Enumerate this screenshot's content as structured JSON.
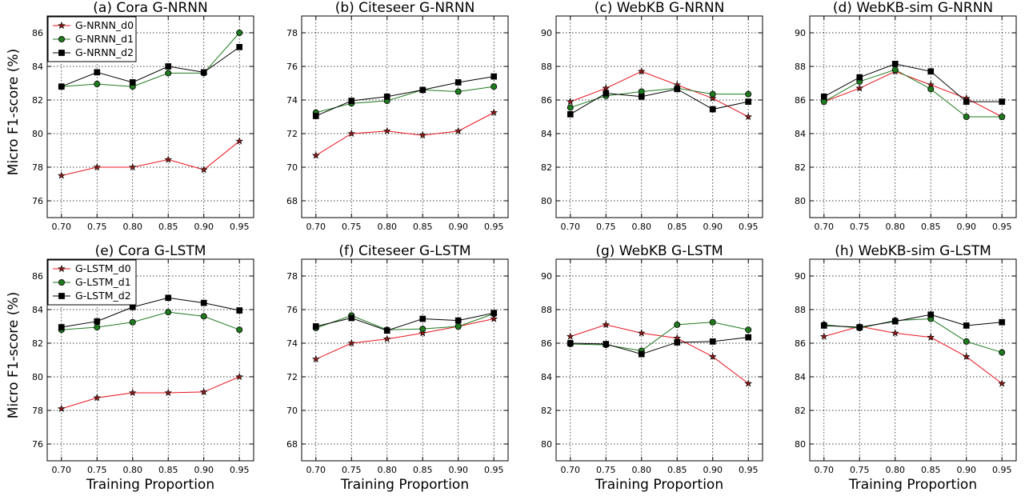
{
  "figure": {
    "ylabel": "Micro F1-score (%)",
    "xlabel": "Training Proportion",
    "colors": {
      "d0": "#e8141e",
      "d1": "#1f7a1f",
      "d2": "#000000"
    }
  },
  "chart_data": [
    {
      "type": "line",
      "title": "(a) Cora G-NRNN",
      "x": [
        0.7,
        0.75,
        0.8,
        0.85,
        0.9,
        0.95
      ],
      "xticks": [
        "0.70",
        "0.75",
        "0.80",
        "0.85",
        "0.90",
        "0.95"
      ],
      "ylim": [
        75,
        87
      ],
      "yticks": [
        76,
        78,
        80,
        82,
        84,
        86
      ],
      "grid": true,
      "legend": "top-left",
      "series": [
        {
          "name": "G-NRNN_d0",
          "key": "d0",
          "values": [
            77.5,
            78.0,
            78.0,
            78.45,
            77.85,
            79.55
          ]
        },
        {
          "name": "G-NRNN_d1",
          "key": "d1",
          "values": [
            82.8,
            82.95,
            82.8,
            83.6,
            83.6,
            86.0
          ]
        },
        {
          "name": "G-NRNN_d2",
          "key": "d2",
          "values": [
            82.8,
            83.65,
            83.05,
            84.0,
            83.65,
            85.15
          ]
        }
      ]
    },
    {
      "type": "line",
      "title": "(b) Citeseer G-NRNN",
      "x": [
        0.7,
        0.75,
        0.8,
        0.85,
        0.9,
        0.95
      ],
      "xticks": [
        "0.70",
        "0.75",
        "0.80",
        "0.85",
        "0.90",
        "0.95"
      ],
      "ylim": [
        67,
        79
      ],
      "yticks": [
        68,
        70,
        72,
        74,
        76,
        78
      ],
      "grid": true,
      "series": [
        {
          "key": "d0",
          "values": [
            70.7,
            72.0,
            72.15,
            71.9,
            72.15,
            73.25
          ]
        },
        {
          "key": "d1",
          "values": [
            73.25,
            73.8,
            73.95,
            74.6,
            74.5,
            74.8
          ]
        },
        {
          "key": "d2",
          "values": [
            73.05,
            73.95,
            74.2,
            74.6,
            75.05,
            75.4
          ]
        }
      ]
    },
    {
      "type": "line",
      "title": "(c) WebKB G-NRNN",
      "x": [
        0.7,
        0.75,
        0.8,
        0.85,
        0.9,
        0.95
      ],
      "xticks": [
        "0.70",
        "0.75",
        "0.80",
        "0.85",
        "0.90",
        "0.95"
      ],
      "ylim": [
        79,
        91
      ],
      "yticks": [
        80,
        82,
        84,
        86,
        88,
        90
      ],
      "grid": true,
      "series": [
        {
          "key": "d0",
          "values": [
            85.9,
            86.7,
            87.7,
            86.9,
            86.1,
            85.0
          ]
        },
        {
          "key": "d1",
          "values": [
            85.55,
            86.25,
            86.5,
            86.7,
            86.35,
            86.35
          ]
        },
        {
          "key": "d2",
          "values": [
            85.15,
            86.4,
            86.2,
            86.65,
            85.45,
            85.9
          ]
        }
      ]
    },
    {
      "type": "line",
      "title": "(d) WebKB-sim G-NRNN",
      "x": [
        0.7,
        0.75,
        0.8,
        0.85,
        0.9,
        0.95
      ],
      "xticks": [
        "0.70",
        "0.75",
        "0.80",
        "0.85",
        "0.90",
        "0.95"
      ],
      "ylim": [
        79,
        91
      ],
      "yticks": [
        80,
        82,
        84,
        86,
        88,
        90
      ],
      "grid": true,
      "series": [
        {
          "key": "d0",
          "values": [
            85.9,
            86.7,
            87.7,
            86.9,
            86.1,
            85.0
          ]
        },
        {
          "key": "d1",
          "values": [
            85.9,
            87.1,
            87.8,
            86.65,
            85.0,
            85.0
          ]
        },
        {
          "key": "d2",
          "values": [
            86.2,
            87.35,
            88.15,
            87.7,
            85.9,
            85.9
          ]
        }
      ]
    },
    {
      "type": "line",
      "title": "(e) Cora G-LSTM",
      "x": [
        0.7,
        0.75,
        0.8,
        0.85,
        0.9,
        0.95
      ],
      "xticks": [
        "0.70",
        "0.75",
        "0.80",
        "0.85",
        "0.90",
        "0.95"
      ],
      "ylim": [
        75,
        87
      ],
      "yticks": [
        76,
        78,
        80,
        82,
        84,
        86
      ],
      "grid": true,
      "legend": "top-left",
      "series": [
        {
          "name": "G-LSTM_d0",
          "key": "d0",
          "values": [
            78.1,
            78.75,
            79.05,
            79.05,
            79.1,
            80.0
          ]
        },
        {
          "name": "G-LSTM_d1",
          "key": "d1",
          "values": [
            82.8,
            82.95,
            83.25,
            83.85,
            83.6,
            82.8
          ]
        },
        {
          "name": "G-LSTM_d2",
          "key": "d2",
          "values": [
            82.95,
            83.3,
            84.15,
            84.7,
            84.4,
            83.95
          ]
        }
      ]
    },
    {
      "type": "line",
      "title": "(f) Citeseer G-LSTM",
      "x": [
        0.7,
        0.75,
        0.8,
        0.85,
        0.9,
        0.95
      ],
      "xticks": [
        "0.70",
        "0.75",
        "0.80",
        "0.85",
        "0.90",
        "0.95"
      ],
      "ylim": [
        67,
        79
      ],
      "yticks": [
        68,
        70,
        72,
        74,
        76,
        78
      ],
      "grid": true,
      "series": [
        {
          "key": "d0",
          "values": [
            73.05,
            74.0,
            74.25,
            74.6,
            75.0,
            75.45
          ]
        },
        {
          "key": "d1",
          "values": [
            74.9,
            75.65,
            74.8,
            74.85,
            75.0,
            75.75
          ]
        },
        {
          "key": "d2",
          "values": [
            75.0,
            75.5,
            74.75,
            75.45,
            75.35,
            75.8
          ]
        }
      ]
    },
    {
      "type": "line",
      "title": "(g) WebKB G-LSTM",
      "x": [
        0.7,
        0.75,
        0.8,
        0.85,
        0.9,
        0.95
      ],
      "xticks": [
        "0.70",
        "0.75",
        "0.80",
        "0.85",
        "0.90",
        "0.95"
      ],
      "ylim": [
        79,
        91
      ],
      "yticks": [
        80,
        82,
        84,
        86,
        88,
        90
      ],
      "grid": true,
      "series": [
        {
          "key": "d0",
          "values": [
            86.4,
            87.1,
            86.6,
            86.3,
            85.2,
            83.6
          ]
        },
        {
          "key": "d1",
          "values": [
            85.95,
            85.9,
            85.55,
            87.1,
            87.25,
            86.8
          ]
        },
        {
          "key": "d2",
          "values": [
            86.0,
            85.95,
            85.35,
            86.05,
            86.1,
            86.35
          ]
        }
      ]
    },
    {
      "type": "line",
      "title": "(h) WebKB-sim G-LSTM",
      "x": [
        0.7,
        0.75,
        0.8,
        0.85,
        0.9,
        0.95
      ],
      "xticks": [
        "0.70",
        "0.75",
        "0.80",
        "0.85",
        "0.90",
        "0.95"
      ],
      "ylim": [
        79,
        91
      ],
      "yticks": [
        80,
        82,
        84,
        86,
        88,
        90
      ],
      "grid": true,
      "series": [
        {
          "key": "d0",
          "values": [
            86.4,
            87.0,
            86.6,
            86.35,
            85.2,
            83.6
          ]
        },
        {
          "key": "d1",
          "values": [
            87.1,
            86.9,
            87.35,
            87.45,
            86.1,
            85.45
          ]
        },
        {
          "key": "d2",
          "values": [
            87.05,
            86.95,
            87.3,
            87.7,
            87.05,
            87.25
          ]
        }
      ]
    }
  ]
}
